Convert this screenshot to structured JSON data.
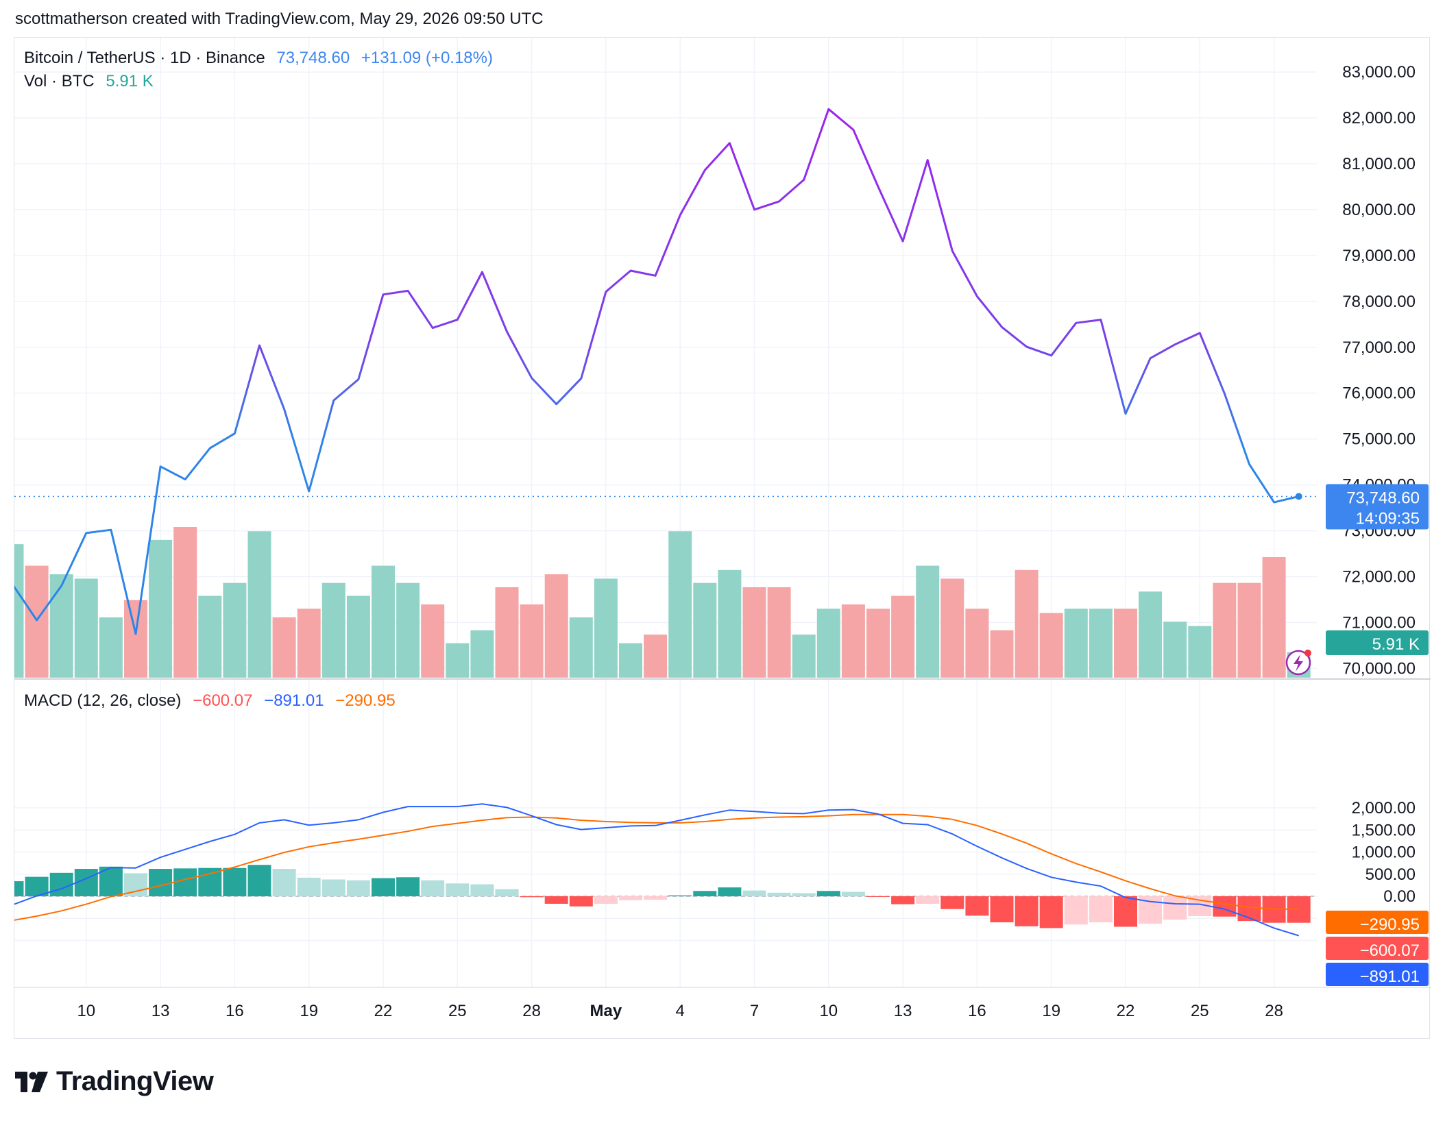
{
  "header": {
    "attribution": "scottmatherson created with TradingView.com, May 29, 2026 09:50 UTC"
  },
  "legend_price": {
    "symbol": "Bitcoin / TetherUS · 1D · Binance",
    "last": "73,748.60",
    "change": "+131.09 (+0.18%)"
  },
  "legend_volume": {
    "label": "Vol · BTC",
    "value": "5.91 K"
  },
  "legend_macd": {
    "label": "MACD (12, 26, close)",
    "hist": "−600.07",
    "macd": "−891.01",
    "signal": "−290.95"
  },
  "badges": {
    "price": "73,748.60",
    "countdown": "14:09:35",
    "volume": "5.91 K",
    "signal": "−290.95",
    "hist": "−600.07",
    "macd": "−891.01"
  },
  "colors": {
    "line_purple": "#9c27ef",
    "line_blue": "#2e85e8",
    "up_volume": "#92d3c8",
    "down_volume": "#f5a5a5",
    "macd_line": "#2962ff",
    "signal_line": "#ff6d00",
    "hist_strong_up": "#26a69a",
    "hist_weak_up": "#b2dfdb",
    "hist_strong_down": "#ff5252",
    "hist_weak_down": "#ffcdd2",
    "price_badge": "#3d86f0",
    "volume_badge": "#26a69a"
  },
  "footer": {
    "brand": "TradingView"
  },
  "chart_data": [
    {
      "type": "line",
      "name": "price",
      "x_labels": [
        "10",
        "13",
        "16",
        "19",
        "22",
        "25",
        "28",
        "May",
        "4",
        "7",
        "10",
        "13",
        "16",
        "19",
        "22",
        "25",
        "28"
      ],
      "x": [
        "Apr 7",
        "Apr 8",
        "Apr 9",
        "Apr 10",
        "Apr 11",
        "Apr 12",
        "Apr 13",
        "Apr 14",
        "Apr 15",
        "Apr 16",
        "Apr 17",
        "Apr 18",
        "Apr 19",
        "Apr 20",
        "Apr 21",
        "Apr 22",
        "Apr 23",
        "Apr 24",
        "Apr 25",
        "Apr 26",
        "Apr 27",
        "Apr 28",
        "Apr 29",
        "Apr 30",
        "May 1",
        "May 2",
        "May 3",
        "May 4",
        "May 5",
        "May 6",
        "May 7",
        "May 8",
        "May 9",
        "May 10",
        "May 11",
        "May 12",
        "May 13",
        "May 14",
        "May 15",
        "May 16",
        "May 17",
        "May 18",
        "May 19",
        "May 20",
        "May 21",
        "May 22",
        "May 23",
        "May 24",
        "May 25",
        "May 26",
        "May 27",
        "May 28",
        "May 29"
      ],
      "values": [
        71850,
        71050,
        71800,
        72950,
        73020,
        70750,
        74400,
        74120,
        74800,
        75120,
        77040,
        75650,
        73860,
        75840,
        76300,
        78150,
        78230,
        77420,
        77600,
        78640,
        77340,
        76330,
        75760,
        76320,
        78210,
        78670,
        78560,
        79880,
        80860,
        81450,
        80000,
        80180,
        80650,
        82190,
        81740,
        80500,
        79310,
        81080,
        79100,
        78110,
        77440,
        77010,
        76820,
        77530,
        77600,
        75550,
        76760,
        77060,
        77310,
        75990,
        74450,
        73620,
        73748.6
      ],
      "ylim": [
        69700,
        83500
      ],
      "y_ticks": [
        70000,
        71000,
        72000,
        73000,
        74000,
        75000,
        76000,
        77000,
        78000,
        79000,
        80000,
        81000,
        82000,
        83000
      ],
      "last_price": 73748.6
    },
    {
      "type": "bar",
      "name": "volume",
      "x": "same as price",
      "values": [
        31,
        26,
        24,
        23,
        14,
        18,
        32,
        35,
        19,
        22,
        34,
        14,
        16,
        22,
        19,
        26,
        22,
        17,
        8,
        11,
        21,
        17,
        24,
        14,
        23,
        8,
        10,
        34,
        22,
        25,
        21,
        21,
        10,
        16,
        17,
        16,
        19,
        26,
        23,
        16,
        11,
        25,
        15,
        16,
        16,
        16,
        20,
        13,
        12,
        22,
        22,
        28,
        5.91
      ],
      "direction": [
        "up",
        "down",
        "up",
        "up",
        "up",
        "down",
        "up",
        "down",
        "up",
        "up",
        "up",
        "down",
        "down",
        "up",
        "up",
        "up",
        "up",
        "down",
        "up",
        "up",
        "down",
        "down",
        "down",
        "up",
        "up",
        "up",
        "down",
        "up",
        "up",
        "up",
        "down",
        "down",
        "up",
        "up",
        "down",
        "down",
        "down",
        "up",
        "down",
        "down",
        "down",
        "down",
        "down",
        "up",
        "up",
        "down",
        "up",
        "up",
        "up",
        "down",
        "down",
        "down",
        "up"
      ]
    },
    {
      "type": "bar+line",
      "name": "MACD (12, 26, close)",
      "y_ticks": [
        2000,
        1500,
        1000,
        500,
        0,
        -500,
        -1000
      ],
      "y_tick_labels": [
        "2,000.00",
        "1,500.00",
        "1,000.00",
        "500.00",
        "0.00"
      ],
      "ylim": [
        -1000,
        2150
      ],
      "macd": [
        -200,
        10,
        170,
        400,
        650,
        640,
        880,
        1060,
        1240,
        1400,
        1660,
        1730,
        1610,
        1660,
        1730,
        1900,
        2030,
        2030,
        2030,
        2090,
        2010,
        1820,
        1620,
        1510,
        1550,
        1590,
        1600,
        1720,
        1840,
        1950,
        1920,
        1880,
        1870,
        1950,
        1960,
        1860,
        1650,
        1620,
        1410,
        1130,
        870,
        630,
        430,
        320,
        230,
        -30,
        -120,
        -170,
        -180,
        -290,
        -490,
        -720,
        -891.01
      ],
      "signal": [
        -550,
        -450,
        -330,
        -180,
        -10,
        110,
        240,
        380,
        510,
        660,
        830,
        990,
        1120,
        1210,
        1290,
        1380,
        1470,
        1580,
        1650,
        1720,
        1780,
        1790,
        1770,
        1720,
        1690,
        1670,
        1660,
        1660,
        1690,
        1740,
        1770,
        1790,
        1800,
        1820,
        1850,
        1850,
        1850,
        1810,
        1740,
        1600,
        1410,
        1200,
        960,
        740,
        550,
        350,
        170,
        10,
        -90,
        -170,
        -250,
        -290,
        -290.95
      ],
      "histogram": [
        340,
        440,
        530,
        620,
        670,
        520,
        620,
        630,
        640,
        640,
        710,
        620,
        420,
        380,
        360,
        410,
        430,
        360,
        290,
        270,
        160,
        -20,
        -170,
        -230,
        -170,
        -90,
        -80,
        20,
        120,
        200,
        130,
        80,
        70,
        120,
        100,
        -10,
        -180,
        -170,
        -290,
        -440,
        -590,
        -680,
        -720,
        -640,
        -590,
        -690,
        -620,
        -530,
        -450,
        -460,
        -560,
        -600,
        -600.07
      ]
    }
  ]
}
